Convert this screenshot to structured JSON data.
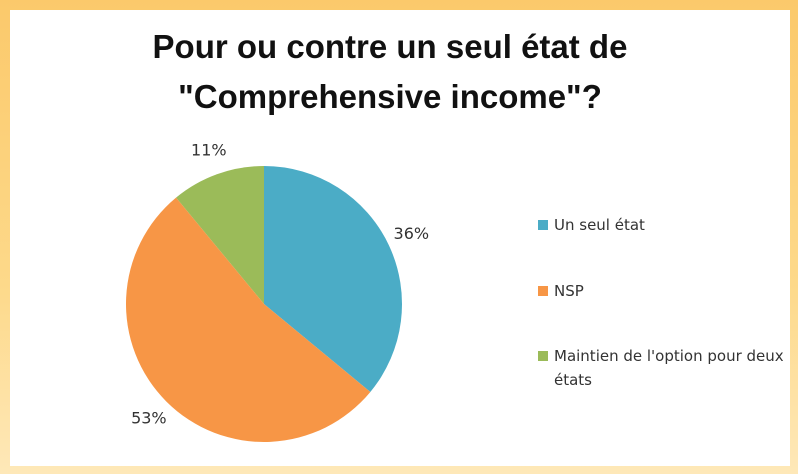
{
  "chart_data": {
    "type": "pie",
    "title": "Pour ou contre un seul état de \"Comprehensive income\"?",
    "categories": [
      "Un seul état",
      "Maintien de l'option pour deux états",
      "NSP"
    ],
    "values": [
      36,
      11,
      53
    ],
    "value_labels": [
      "36%",
      "11%",
      "53%"
    ],
    "colors": [
      "#4bacc6",
      "#9bbb59",
      "#f79646"
    ],
    "legend_order": [
      0,
      2,
      1
    ],
    "legend": "right"
  }
}
